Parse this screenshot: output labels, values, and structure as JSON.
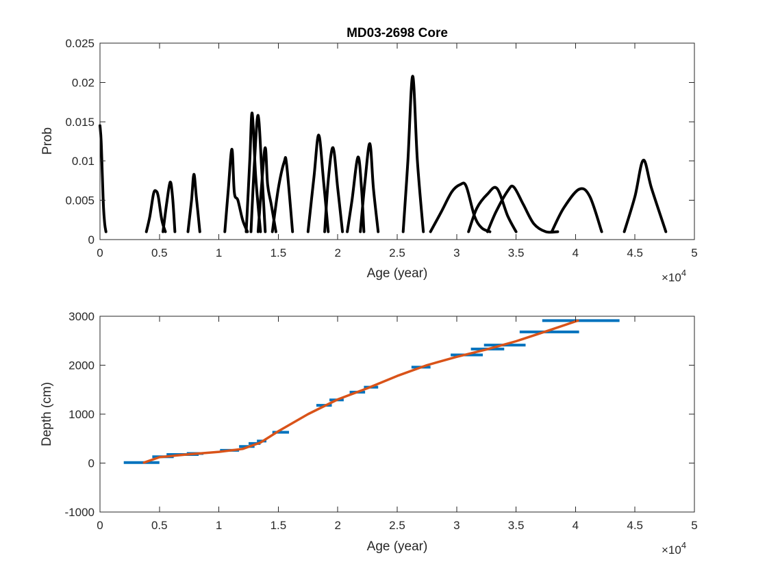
{
  "chart_data": [
    {
      "type": "line",
      "title": "MD03-2698 Core",
      "xlabel": "Age (year)",
      "ylabel": "Prob",
      "xlim": [
        0,
        50000
      ],
      "ylim": [
        0,
        0.025
      ],
      "xticks": [
        0,
        5000,
        10000,
        15000,
        20000,
        25000,
        30000,
        35000,
        40000,
        45000,
        50000
      ],
      "xtick_labels": [
        "0",
        "0.5",
        "1",
        "1.5",
        "2",
        "2.5",
        "3",
        "3.5",
        "4",
        "4.5",
        "5"
      ],
      "yticks": [
        0,
        0.005,
        0.01,
        0.015,
        0.02,
        0.025
      ],
      "ytick_labels": [
        "0",
        "0.005",
        "0.01",
        "0.015",
        "0.02",
        "0.025"
      ],
      "x_multiplier_label": "×10",
      "x_multiplier_exp": "4",
      "line_color": "#000000",
      "grid": false,
      "series": [
        {
          "x": [
            0,
            100,
            200,
            300,
            400,
            500
          ],
          "y": [
            0.0145,
            0.0125,
            0.008,
            0.004,
            0.002,
            0.001
          ]
        },
        {
          "x": [
            3900,
            4200,
            4500,
            4700,
            4900,
            5200,
            5500
          ],
          "y": [
            0.001,
            0.003,
            0.0058,
            0.0062,
            0.0055,
            0.0025,
            0.001
          ]
        },
        {
          "x": [
            5300,
            5600,
            5900,
            6100,
            6300
          ],
          "y": [
            0.001,
            0.0045,
            0.0073,
            0.0055,
            0.001
          ]
        },
        {
          "x": [
            7400,
            7700,
            7900,
            8100,
            8400
          ],
          "y": [
            0.001,
            0.005,
            0.0083,
            0.0055,
            0.001
          ]
        },
        {
          "x": [
            10500,
            10800,
            11100,
            11300,
            11600,
            12000,
            12400
          ],
          "y": [
            0.001,
            0.0065,
            0.0115,
            0.006,
            0.005,
            0.0025,
            0.001
          ]
        },
        {
          "x": [
            12300,
            12600,
            12800,
            13100,
            13500
          ],
          "y": [
            0.001,
            0.01,
            0.0161,
            0.008,
            0.001
          ]
        },
        {
          "x": [
            12700,
            13000,
            13300,
            13600,
            13900
          ],
          "y": [
            0.001,
            0.01,
            0.0158,
            0.009,
            0.001
          ]
        },
        {
          "x": [
            13300,
            13600,
            13900,
            14100,
            14400,
            14800
          ],
          "y": [
            0.001,
            0.007,
            0.0117,
            0.007,
            0.0045,
            0.001
          ]
        },
        {
          "x": [
            14500,
            15000,
            15500,
            15700,
            16200
          ],
          "y": [
            0.001,
            0.0065,
            0.0099,
            0.0095,
            0.001
          ]
        },
        {
          "x": [
            17500,
            18000,
            18400,
            18800,
            19200
          ],
          "y": [
            0.001,
            0.008,
            0.0133,
            0.0075,
            0.001
          ]
        },
        {
          "x": [
            18900,
            19200,
            19600,
            20000,
            20400
          ],
          "y": [
            0.001,
            0.0075,
            0.0117,
            0.0065,
            0.001
          ]
        },
        {
          "x": [
            20800,
            21200,
            21700,
            22000,
            22200
          ],
          "y": [
            0.001,
            0.005,
            0.0105,
            0.0065,
            0.001
          ]
        },
        {
          "x": [
            21900,
            22300,
            22700,
            23000,
            23400
          ],
          "y": [
            0.001,
            0.0075,
            0.0122,
            0.0065,
            0.001
          ]
        },
        {
          "x": [
            25500,
            25900,
            26300,
            26700,
            27200
          ],
          "y": [
            0.001,
            0.01,
            0.0208,
            0.01,
            0.001
          ]
        },
        {
          "x": [
            27800,
            28700,
            29600,
            30300,
            30800,
            31500,
            32100,
            32800
          ],
          "y": [
            0.001,
            0.0035,
            0.0061,
            0.007,
            0.0068,
            0.003,
            0.0015,
            0.001
          ]
        },
        {
          "x": [
            31000,
            31700,
            32600,
            33400,
            34300,
            35000
          ],
          "y": [
            0.001,
            0.004,
            0.0058,
            0.0065,
            0.003,
            0.001
          ]
        },
        {
          "x": [
            32600,
            33300,
            34300,
            34800,
            35600,
            36500,
            37500,
            38500
          ],
          "y": [
            0.001,
            0.0035,
            0.0062,
            0.0067,
            0.0045,
            0.002,
            0.001,
            0.001
          ]
        },
        {
          "x": [
            38000,
            39000,
            40300,
            41200,
            42200
          ],
          "y": [
            0.001,
            0.004,
            0.0064,
            0.0055,
            0.001
          ]
        },
        {
          "x": [
            44100,
            45000,
            45700,
            46400,
            47600
          ],
          "y": [
            0.001,
            0.0055,
            0.0101,
            0.0065,
            0.001
          ]
        }
      ]
    },
    {
      "type": "line",
      "xlabel": "Age (year)",
      "ylabel": "Depth (cm)",
      "xlim": [
        0,
        50000
      ],
      "ylim": [
        -1000,
        3000
      ],
      "xticks": [
        0,
        5000,
        10000,
        15000,
        20000,
        25000,
        30000,
        35000,
        40000,
        45000,
        50000
      ],
      "xtick_labels": [
        "0",
        "0.5",
        "1",
        "1.5",
        "2",
        "2.5",
        "3",
        "3.5",
        "4",
        "4.5",
        "5"
      ],
      "yticks": [
        -1000,
        0,
        1000,
        2000,
        3000
      ],
      "ytick_labels": [
        "-1000",
        "0",
        "1000",
        "2000",
        "3000"
      ],
      "x_multiplier_label": "×10",
      "x_multiplier_exp": "4",
      "grid": false,
      "error_bar_color": "#0072BD",
      "model_line_color": "#D95319",
      "error_bars": [
        {
          "x_min": 2000,
          "x_max": 5000,
          "depth": 10
        },
        {
          "x_min": 4400,
          "x_max": 6200,
          "depth": 130
        },
        {
          "x_min": 5600,
          "x_max": 8300,
          "depth": 175
        },
        {
          "x_min": 7300,
          "x_max": 8700,
          "depth": 195
        },
        {
          "x_min": 10100,
          "x_max": 11700,
          "depth": 260
        },
        {
          "x_min": 11700,
          "x_max": 13000,
          "depth": 340
        },
        {
          "x_min": 12500,
          "x_max": 13500,
          "depth": 400
        },
        {
          "x_min": 13200,
          "x_max": 14000,
          "depth": 450
        },
        {
          "x_min": 14500,
          "x_max": 15900,
          "depth": 630
        },
        {
          "x_min": 18200,
          "x_max": 19500,
          "depth": 1180
        },
        {
          "x_min": 19300,
          "x_max": 20500,
          "depth": 1290
        },
        {
          "x_min": 21000,
          "x_max": 22300,
          "depth": 1450
        },
        {
          "x_min": 22200,
          "x_max": 23400,
          "depth": 1550
        },
        {
          "x_min": 26200,
          "x_max": 27800,
          "depth": 1960
        },
        {
          "x_min": 29500,
          "x_max": 32200,
          "depth": 2210
        },
        {
          "x_min": 31200,
          "x_max": 34000,
          "depth": 2330
        },
        {
          "x_min": 32300,
          "x_max": 35800,
          "depth": 2410
        },
        {
          "x_min": 35300,
          "x_max": 40300,
          "depth": 2680
        },
        {
          "x_min": 37200,
          "x_max": 43700,
          "depth": 2910
        }
      ],
      "age_model": {
        "x": [
          3700,
          5000,
          7500,
          10000,
          12000,
          13500,
          15000,
          17500,
          20000,
          22500,
          25000,
          27500,
          30000,
          32500,
          35000,
          37500,
          40200
        ],
        "y": [
          10,
          120,
          180,
          230,
          290,
          420,
          650,
          1000,
          1300,
          1530,
          1780,
          2000,
          2170,
          2320,
          2490,
          2690,
          2910
        ]
      }
    }
  ]
}
